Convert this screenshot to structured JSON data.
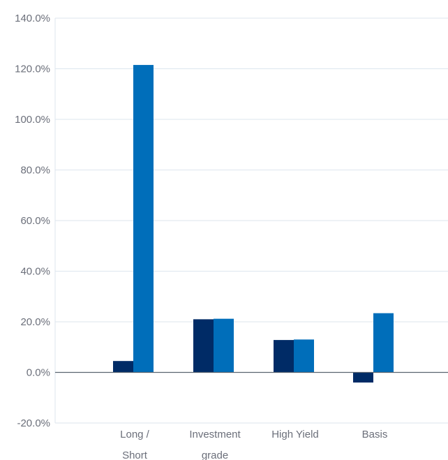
{
  "chart_data": {
    "type": "bar",
    "categories": [
      [
        "Long /",
        "Short"
      ],
      [
        "Investment",
        "grade"
      ],
      [
        "High Yield"
      ],
      [
        "Basis"
      ]
    ],
    "series": [
      {
        "color": "#002b66",
        "values": [
          4.5,
          21.0,
          12.8,
          -4.0
        ]
      },
      {
        "color": "#006eba",
        "values": [
          121.5,
          21.2,
          13.0,
          23.4
        ]
      }
    ],
    "ylim": [
      -20,
      140
    ],
    "yticks": [
      -20,
      0,
      20,
      40,
      60,
      80,
      100,
      120,
      140
    ],
    "ytick_labels": [
      "-20.0%",
      "0.0%",
      "20.0%",
      "40.0%",
      "60.0%",
      "80.0%",
      "100.0%",
      "120.0%",
      "140.0%"
    ],
    "grid": true,
    "legend": "none",
    "colors": {
      "grid": "#dde6ee",
      "zero_line": "#5a6470",
      "text": "#6b6f7a"
    }
  }
}
